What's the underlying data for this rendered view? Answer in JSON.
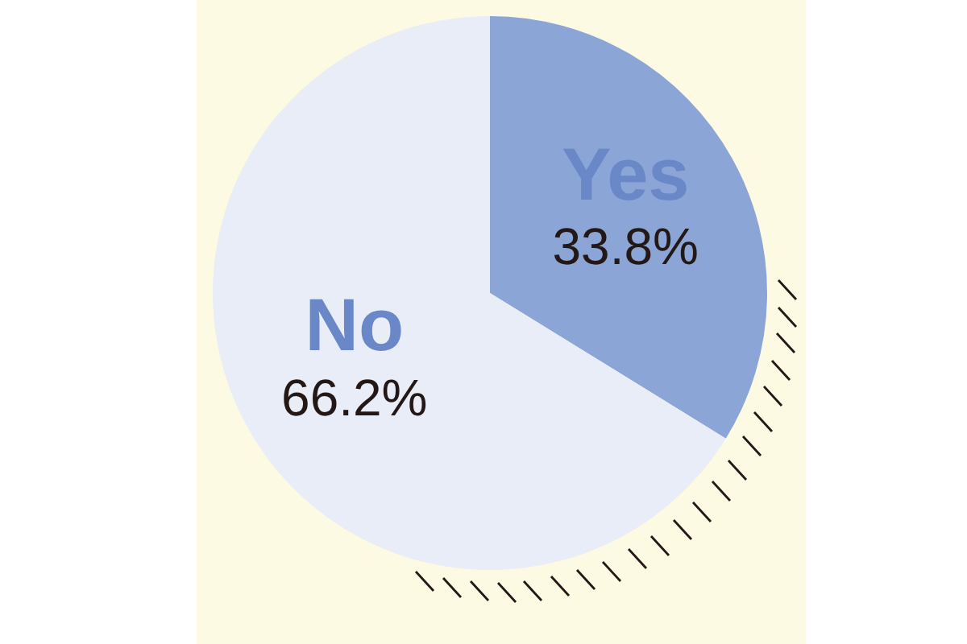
{
  "chart_data": {
    "type": "pie",
    "categories": [
      "Yes",
      "No"
    ],
    "values": [
      33.8,
      66.2
    ],
    "colors": [
      "#8aa5d6",
      "#e8edf7"
    ],
    "value_labels": [
      "33.8%",
      "66.2%"
    ],
    "legend": false
  }
}
